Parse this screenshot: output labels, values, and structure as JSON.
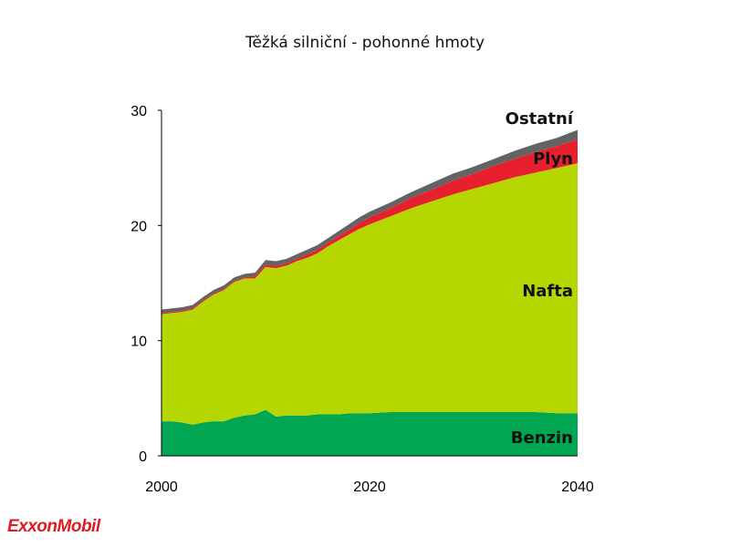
{
  "chart_data": {
    "type": "area",
    "title": "Těžká silniční - pohonné hmoty",
    "xlabel": "",
    "ylabel": "",
    "xlim": [
      2000,
      2040
    ],
    "ylim": [
      0,
      30
    ],
    "xticks": [
      2000,
      2020,
      2040
    ],
    "yticks": [
      0,
      10,
      20,
      30
    ],
    "stacked": true,
    "grid": false,
    "x": [
      2000,
      2001,
      2002,
      2003,
      2004,
      2005,
      2006,
      2007,
      2008,
      2009,
      2010,
      2011,
      2012,
      2013,
      2014,
      2015,
      2016,
      2017,
      2018,
      2019,
      2020,
      2022,
      2024,
      2026,
      2028,
      2030,
      2032,
      2034,
      2036,
      2038,
      2040
    ],
    "series": [
      {
        "name": "Benzin",
        "color": "#00a651",
        "values": [
          3.0,
          3.0,
          2.9,
          2.7,
          2.9,
          3.0,
          3.0,
          3.3,
          3.5,
          3.6,
          4.0,
          3.4,
          3.5,
          3.5,
          3.5,
          3.6,
          3.6,
          3.6,
          3.7,
          3.7,
          3.7,
          3.8,
          3.8,
          3.8,
          3.8,
          3.8,
          3.8,
          3.8,
          3.8,
          3.7,
          3.7
        ]
      },
      {
        "name": "Nafta",
        "color": "#b5d600",
        "values": [
          9.3,
          9.4,
          9.6,
          10.0,
          10.5,
          11.0,
          11.4,
          11.8,
          11.9,
          11.8,
          12.4,
          12.9,
          13.0,
          13.4,
          13.7,
          14.0,
          14.6,
          15.1,
          15.5,
          16.0,
          16.4,
          17.0,
          17.7,
          18.3,
          18.9,
          19.4,
          19.9,
          20.4,
          20.8,
          21.3,
          21.7
        ]
      },
      {
        "name": "Plyn",
        "color": "#e8202e",
        "values": [
          0.1,
          0.1,
          0.1,
          0.1,
          0.1,
          0.1,
          0.1,
          0.1,
          0.1,
          0.2,
          0.2,
          0.2,
          0.2,
          0.2,
          0.3,
          0.3,
          0.3,
          0.4,
          0.4,
          0.5,
          0.6,
          0.7,
          0.9,
          1.0,
          1.2,
          1.3,
          1.5,
          1.6,
          1.8,
          1.9,
          2.1
        ]
      },
      {
        "name": "Ostatní",
        "color": "#636363",
        "values": [
          0.3,
          0.3,
          0.3,
          0.3,
          0.3,
          0.3,
          0.3,
          0.3,
          0.3,
          0.3,
          0.4,
          0.4,
          0.4,
          0.4,
          0.4,
          0.4,
          0.4,
          0.4,
          0.5,
          0.5,
          0.5,
          0.5,
          0.5,
          0.6,
          0.6,
          0.6,
          0.6,
          0.7,
          0.7,
          0.7,
          0.8
        ]
      }
    ]
  },
  "logo": {
    "text": "ExxonMobil",
    "color": "#e01b24"
  }
}
